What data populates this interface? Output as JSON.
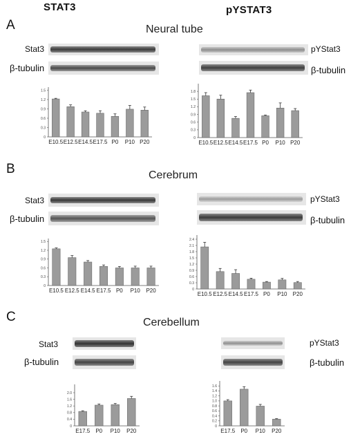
{
  "columns": {
    "left": "STAT3",
    "right": "pYSTAT3"
  },
  "panels": [
    {
      "letter": "A",
      "title": "Neural tube",
      "left_blot_label": "Stat3",
      "right_blot_label": "pYStat3",
      "loading_label": "β-tubulin"
    },
    {
      "letter": "B",
      "title": "Cerebrum",
      "left_blot_label": "Stat3",
      "right_blot_label": "pYStat3",
      "loading_label": "β-tubulin"
    },
    {
      "letter": "C",
      "title": "Cerebellum",
      "left_blot_label": "Stat3",
      "right_blot_label": "pYStat3",
      "loading_label": "β-tubulin"
    }
  ],
  "chart_data": [
    {
      "type": "bar",
      "panel": "A",
      "column": "STAT3",
      "categories": [
        "E10.5",
        "E12.5",
        "E14.5",
        "E17.5",
        "P0",
        "P10",
        "P20"
      ],
      "values": [
        1.22,
        0.97,
        0.8,
        0.76,
        0.66,
        0.89,
        0.86
      ],
      "errors": [
        0.02,
        0.06,
        0.04,
        0.08,
        0.08,
        0.12,
        0.1
      ],
      "ylim": [
        0,
        1.6
      ],
      "yticks": [
        "0",
        "0.3",
        "0.6",
        "0.9",
        "1.2",
        "1.5"
      ],
      "ytick_values": [
        0,
        0.3,
        0.6,
        0.9,
        1.2,
        1.5
      ]
    },
    {
      "type": "bar",
      "panel": "A",
      "column": "pYSTAT3",
      "categories": [
        "E10.5",
        "E12.5",
        "E14.5",
        "E17.5",
        "P0",
        "P10",
        "P20"
      ],
      "values": [
        1.63,
        1.5,
        0.75,
        1.75,
        0.85,
        1.15,
        1.05
      ],
      "errors": [
        0.12,
        0.15,
        0.07,
        0.1,
        0.03,
        0.2,
        0.08
      ],
      "ylim": [
        0,
        2.1
      ],
      "yticks": [
        "0",
        "0.3",
        "0.6",
        "0.9",
        "1.2",
        "1.5",
        "1.8"
      ],
      "ytick_values": [
        0,
        0.3,
        0.6,
        0.9,
        1.2,
        1.5,
        1.8
      ]
    },
    {
      "type": "bar",
      "panel": "B",
      "column": "STAT3",
      "categories": [
        "E10.5",
        "E12.5",
        "E14.5",
        "E17.5",
        "P0",
        "P10",
        "P20"
      ],
      "values": [
        1.25,
        0.95,
        0.8,
        0.65,
        0.6,
        0.6,
        0.6
      ],
      "errors": [
        0.03,
        0.07,
        0.05,
        0.05,
        0.05,
        0.06,
        0.06
      ],
      "ylim": [
        0,
        1.6
      ],
      "yticks": [
        "0",
        "0.3",
        "0.6",
        "0.9",
        "1.2",
        "1.5"
      ],
      "ytick_values": [
        0,
        0.3,
        0.6,
        0.9,
        1.2,
        1.5
      ]
    },
    {
      "type": "bar",
      "panel": "B",
      "column": "pYSTAT3",
      "categories": [
        "E10.5",
        "E12.5",
        "E14.5",
        "E17.5",
        "P0",
        "P10",
        "P20"
      ],
      "values": [
        2.03,
        0.84,
        0.75,
        0.47,
        0.33,
        0.44,
        0.31
      ],
      "errors": [
        0.22,
        0.15,
        0.18,
        0.05,
        0.03,
        0.07,
        0.05
      ],
      "ylim": [
        0,
        2.6
      ],
      "yticks": [
        "0",
        "0.3",
        "0.6",
        "0.9",
        "1.2",
        "1.5",
        "1.8",
        "2.1",
        "2.4"
      ],
      "ytick_values": [
        0,
        0.3,
        0.6,
        0.9,
        1.2,
        1.5,
        1.8,
        2.1,
        2.4
      ]
    },
    {
      "type": "bar",
      "panel": "C",
      "column": "STAT3",
      "categories": [
        "E17.5",
        "P0",
        "P10",
        "P20"
      ],
      "values": [
        0.87,
        1.25,
        1.28,
        1.65
      ],
      "errors": [
        0.04,
        0.07,
        0.07,
        0.13
      ],
      "ylim": [
        0,
        2.5
      ],
      "yticks": [
        "0",
        "0.4",
        "0.8",
        "1.2",
        "1.6",
        "2.0"
      ],
      "ytick_values": [
        0,
        0.4,
        0.8,
        1.2,
        1.6,
        2.0
      ]
    },
    {
      "type": "bar",
      "panel": "C",
      "column": "pYSTAT3",
      "categories": [
        "E17.5",
        "P0",
        "P10",
        "P20"
      ],
      "values": [
        1.0,
        1.47,
        0.79,
        0.27
      ],
      "errors": [
        0.05,
        0.1,
        0.07,
        0.02
      ],
      "ylim": [
        0,
        1.8
      ],
      "yticks": [
        "0",
        "0.2",
        "0.4",
        "0.6",
        "0.8",
        "1.0",
        "1.2",
        "1.4",
        "1.6"
      ],
      "ytick_values": [
        0,
        0.2,
        0.4,
        0.6,
        0.8,
        1.0,
        1.2,
        1.4,
        1.6
      ]
    }
  ]
}
